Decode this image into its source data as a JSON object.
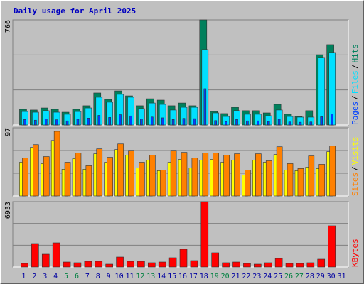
{
  "chart_data": {
    "type": "bar",
    "title": "Daily usage for April 2025",
    "categories": [
      "1",
      "2",
      "3",
      "4",
      "5",
      "6",
      "7",
      "8",
      "9",
      "10",
      "11",
      "12",
      "13",
      "14",
      "15",
      "16",
      "17",
      "18",
      "19",
      "20",
      "21",
      "22",
      "23",
      "24",
      "25",
      "26",
      "27",
      "28",
      "29",
      "30",
      "31"
    ],
    "highlight": [
      4,
      5,
      11,
      12,
      18,
      19,
      25,
      26
    ],
    "label_color": "#0000a0",
    "highlight_color": "#008040",
    "separator": "/",
    "panels": [
      {
        "type": "bar",
        "ylim": [
          0,
          766
        ],
        "yticks": [
          766
        ],
        "series": [
          {
            "name": "Hits",
            "color": "#00805c",
            "values": [
              114,
              109,
              124,
              114,
              93,
              114,
              140,
              233,
              186,
              248,
              212,
              140,
              191,
              181,
              140,
              160,
              140,
              766,
              98,
              83,
              129,
              104,
              104,
              88,
              150,
              78,
              62,
              104,
              512,
              585,
              0
            ]
          },
          {
            "name": "Files",
            "color": "#00e0ff",
            "values": [
              98,
              93,
              104,
              93,
              78,
              98,
              124,
              202,
              166,
              223,
              202,
              119,
              160,
              150,
              109,
              129,
              129,
              549,
              88,
              62,
              104,
              78,
              78,
              67,
              109,
              62,
              57,
              57,
              492,
              528,
              0
            ]
          },
          {
            "name": "Pages",
            "color": "#0040ff",
            "values": [
              40,
              35,
              45,
              38,
              30,
              42,
              50,
              70,
              55,
              75,
              66,
              44,
              58,
              52,
              40,
              48,
              46,
              264,
              32,
              25,
              40,
              30,
              30,
              26,
              42,
              22,
              20,
              22,
              60,
              80,
              0
            ]
          }
        ]
      },
      {
        "type": "bar",
        "ylim": [
          0,
          97
        ],
        "yticks": [
          97
        ],
        "series": [
          {
            "name": "Visits",
            "color": "#ffff00",
            "values": [
              48,
              69,
              46,
              79,
              38,
              53,
              38,
              60,
              48,
              66,
              58,
              40,
              51,
              36,
              48,
              52,
              40,
              51,
              52,
              48,
              51,
              30,
              51,
              48,
              59,
              37,
              36,
              41,
              39,
              63,
              0
            ]
          },
          {
            "name": "Sites",
            "color": "#ff8000",
            "values": [
              54,
              73,
              56,
              92,
              48,
              61,
              43,
              67,
              55,
              74,
              65,
              48,
              58,
              37,
              65,
              62,
              54,
              61,
              61,
              58,
              60,
              37,
              60,
              50,
              70,
              46,
              39,
              57,
              45,
              71,
              0
            ]
          }
        ]
      },
      {
        "type": "bar",
        "ylim": [
          0,
          6933
        ],
        "yticks": [
          6933
        ],
        "series": [
          {
            "name": "KBytes",
            "color": "#ff0000",
            "values": [
              377,
              2487,
              1356,
              2562,
              527,
              452,
              603,
              603,
              301,
              1055,
              603,
              603,
              452,
              527,
              980,
              1884,
              678,
              6933,
              1507,
              452,
              527,
              377,
              301,
              452,
              904,
              377,
              377,
              452,
              829,
              4371,
              0
            ]
          }
        ]
      }
    ]
  }
}
